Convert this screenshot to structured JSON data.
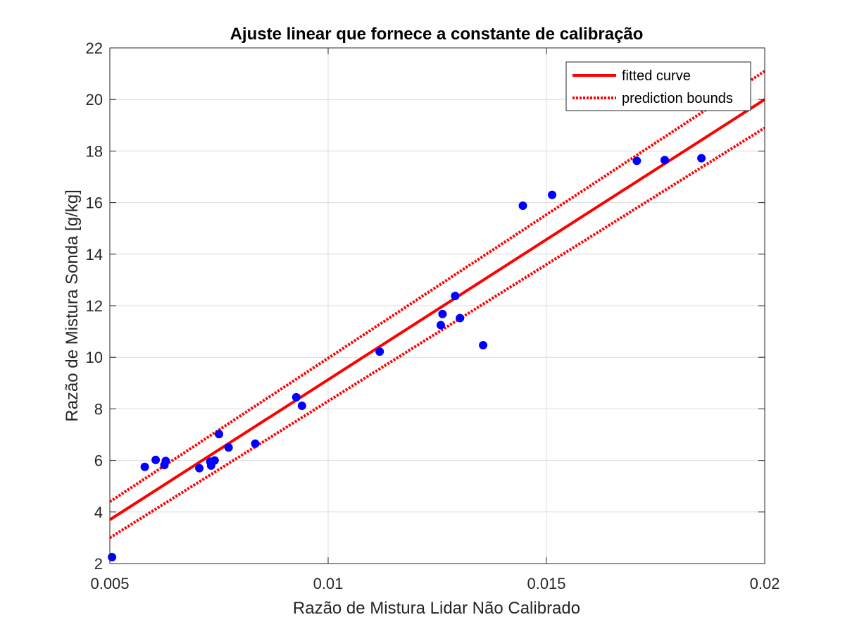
{
  "chart_data": {
    "type": "scatter",
    "title": "Ajuste linear que fornece a constante de calibração",
    "xlabel": "Razão de Mistura Lidar Não Calibrado",
    "ylabel": "Razão de Mistura Sonda [g/kg]",
    "xlim": [
      0.005,
      0.02
    ],
    "ylim": [
      2,
      22
    ],
    "x_ticks": [
      0.005,
      0.01,
      0.015,
      0.02
    ],
    "x_tick_labels": [
      "0.005",
      "0.01",
      "0.015",
      "0.02"
    ],
    "y_ticks": [
      2,
      4,
      6,
      8,
      10,
      12,
      14,
      16,
      18,
      20,
      22
    ],
    "y_tick_labels": [
      "2",
      "4",
      "6",
      "8",
      "10",
      "12",
      "14",
      "16",
      "18",
      "20",
      "22"
    ],
    "grid": true,
    "legend_position": "top-right",
    "legend": [
      {
        "label": "fitted curve",
        "style": "solid",
        "color": "#ff0000"
      },
      {
        "label": "prediction bounds",
        "style": "dotted",
        "color": "#ff0000"
      }
    ],
    "points": {
      "color": "#0000ff",
      "x": [
        0.00505,
        0.0058,
        0.00605,
        0.00625,
        0.00628,
        0.00705,
        0.0073,
        0.00732,
        0.0074,
        0.0075,
        0.00772,
        0.00833,
        0.00927,
        0.0094,
        0.01118,
        0.01258,
        0.01262,
        0.01291,
        0.01302,
        0.01355,
        0.01446,
        0.01513,
        0.01707,
        0.01771,
        0.01855
      ],
      "y": [
        2.25,
        5.75,
        6.02,
        5.82,
        5.98,
        5.7,
        5.95,
        5.8,
        6.0,
        7.02,
        6.5,
        6.65,
        8.45,
        8.12,
        10.22,
        11.25,
        11.68,
        12.38,
        11.52,
        10.47,
        15.88,
        16.3,
        17.62,
        17.65,
        17.72
      ]
    },
    "fitted_curve": {
      "color": "#ff0000",
      "x": [
        0.005,
        0.02
      ],
      "y": [
        3.7,
        20.0
      ]
    },
    "prediction_bounds": {
      "color": "#ff0000",
      "upper": {
        "x": [
          0.005,
          0.02
        ],
        "y": [
          4.4,
          21.1
        ]
      },
      "lower": {
        "x": [
          0.005,
          0.02
        ],
        "y": [
          3.0,
          18.9
        ]
      }
    }
  }
}
